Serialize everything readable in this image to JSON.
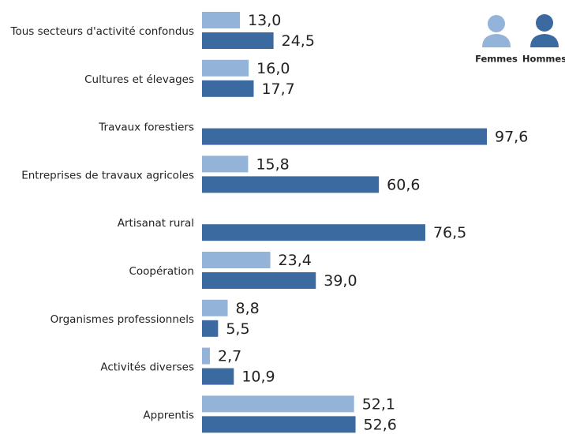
{
  "chart_data": {
    "type": "bar",
    "orientation": "horizontal",
    "categories": [
      "Tous secteurs d'activité confondus",
      "Cultures et élevages",
      "Travaux forestiers",
      "Entreprises de travaux agricoles",
      "Artisanat rural",
      "Coopération",
      "Organismes professionnels",
      "Activités diverses",
      "Apprentis"
    ],
    "series": [
      {
        "name": "Femmes",
        "color": "#93b3d9",
        "values": [
          13.0,
          16.0,
          null,
          15.8,
          null,
          23.4,
          8.8,
          2.7,
          52.1
        ],
        "value_labels": [
          "13,0",
          "16,0",
          null,
          "15,8",
          null,
          "23,4",
          "8,8",
          "2,7",
          "52,1"
        ]
      },
      {
        "name": "Hommes",
        "color": "#3b6aa0",
        "values": [
          24.5,
          17.7,
          97.6,
          60.6,
          76.5,
          39.0,
          5.5,
          10.9,
          52.6
        ],
        "value_labels": [
          "24,5",
          "17,7",
          "97,6",
          "60,6",
          "76,5",
          "39,0",
          "5,5",
          "10,9",
          "52,6"
        ]
      }
    ]
  }
}
